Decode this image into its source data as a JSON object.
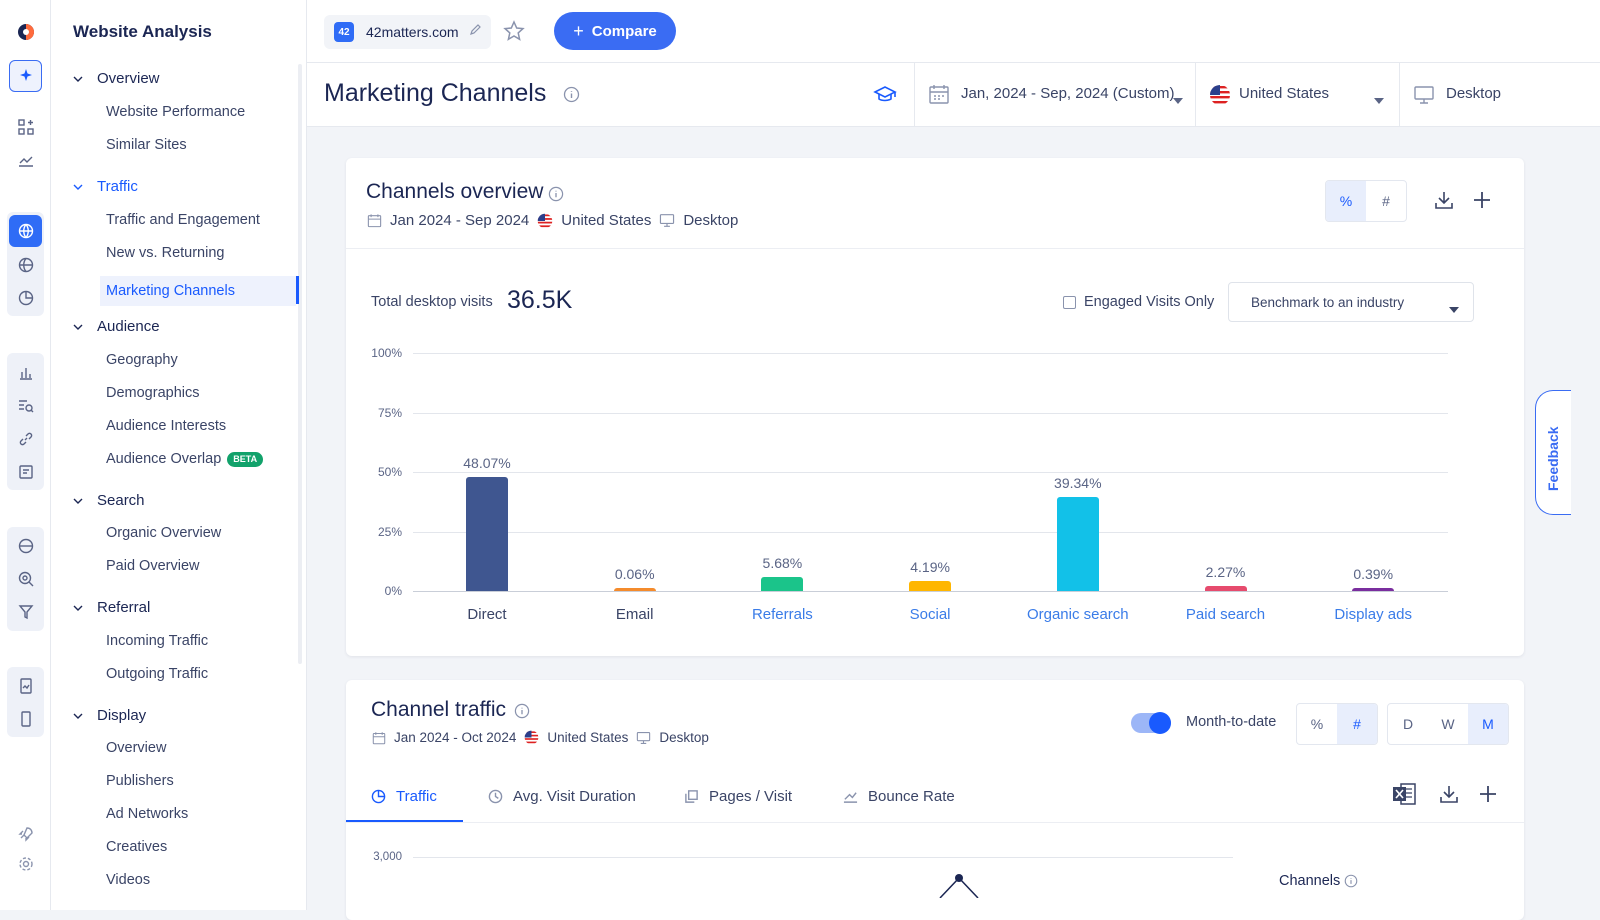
{
  "sidebar": {
    "title": "Website Analysis",
    "sections": [
      {
        "label": "Overview",
        "active": false,
        "items": [
          {
            "label": "Website Performance"
          },
          {
            "label": "Similar Sites"
          }
        ]
      },
      {
        "label": "Traffic",
        "active": true,
        "items": [
          {
            "label": "Traffic and Engagement"
          },
          {
            "label": "New vs. Returning"
          },
          {
            "label": "Marketing Channels"
          }
        ]
      },
      {
        "label": "Audience",
        "active": false,
        "items": [
          {
            "label": "Geography"
          },
          {
            "label": "Demographics"
          },
          {
            "label": "Audience Interests"
          },
          {
            "label": "Audience Overlap",
            "badge": "BETA"
          }
        ]
      },
      {
        "label": "Search",
        "active": false,
        "items": [
          {
            "label": "Organic Overview"
          },
          {
            "label": "Paid Overview"
          }
        ]
      },
      {
        "label": "Referral",
        "active": false,
        "items": [
          {
            "label": "Incoming Traffic"
          },
          {
            "label": "Outgoing Traffic"
          }
        ]
      },
      {
        "label": "Display",
        "active": false,
        "items": [
          {
            "label": "Overview"
          },
          {
            "label": "Publishers"
          },
          {
            "label": "Ad Networks"
          },
          {
            "label": "Creatives"
          },
          {
            "label": "Videos"
          }
        ]
      }
    ]
  },
  "topbar": {
    "favicon_text": "42",
    "site_name": "42matters.com",
    "compare_label": "Compare"
  },
  "header": {
    "title": "Marketing Channels",
    "date_range": "Jan, 2024 - Sep, 2024 (Custom)",
    "country": "United States",
    "device": "Desktop"
  },
  "channels_overview": {
    "title": "Channels overview",
    "date": "Jan 2024 - Sep 2024",
    "country": "United States",
    "device": "Desktop",
    "toggle": [
      "%",
      "#"
    ],
    "total_label": "Total desktop visits",
    "total_value": "36.5K",
    "engaged_label": "Engaged Visits Only",
    "benchmark_label": "Benchmark to an industry"
  },
  "chart_data": {
    "type": "bar",
    "categories": [
      "Direct",
      "Email",
      "Referrals",
      "Social",
      "Organic search",
      "Paid search",
      "Display ads"
    ],
    "values": [
      48.07,
      0.06,
      5.68,
      4.19,
      39.34,
      2.27,
      0.39
    ],
    "value_labels": [
      "48.07%",
      "0.06%",
      "5.68%",
      "4.19%",
      "39.34%",
      "2.27%",
      "0.39%"
    ],
    "colors": [
      "#3f5690",
      "#f48b2c",
      "#1bc48a",
      "#ffb600",
      "#12c1e8",
      "#e64b6d",
      "#7a2e9e"
    ],
    "link_categories": [
      false,
      false,
      true,
      true,
      true,
      true,
      true
    ],
    "ticks": [
      "0%",
      "25%",
      "50%",
      "75%",
      "100%"
    ],
    "ylim": [
      0,
      100
    ],
    "grid": true
  },
  "channel_traffic": {
    "title": "Channel traffic",
    "date": "Jan 2024 - Oct 2024",
    "country": "United States",
    "device": "Desktop",
    "mtd_label": "Month-to-date",
    "mtd_on": true,
    "toggle": [
      "%",
      "#"
    ],
    "granularity": [
      "D",
      "W",
      "M"
    ],
    "tabs": [
      "Traffic",
      "Avg. Visit Duration",
      "Pages / Visit",
      "Bounce Rate"
    ],
    "y_top_tick": "3,000",
    "legend_title": "Channels"
  },
  "feedback_label": "Feedback"
}
